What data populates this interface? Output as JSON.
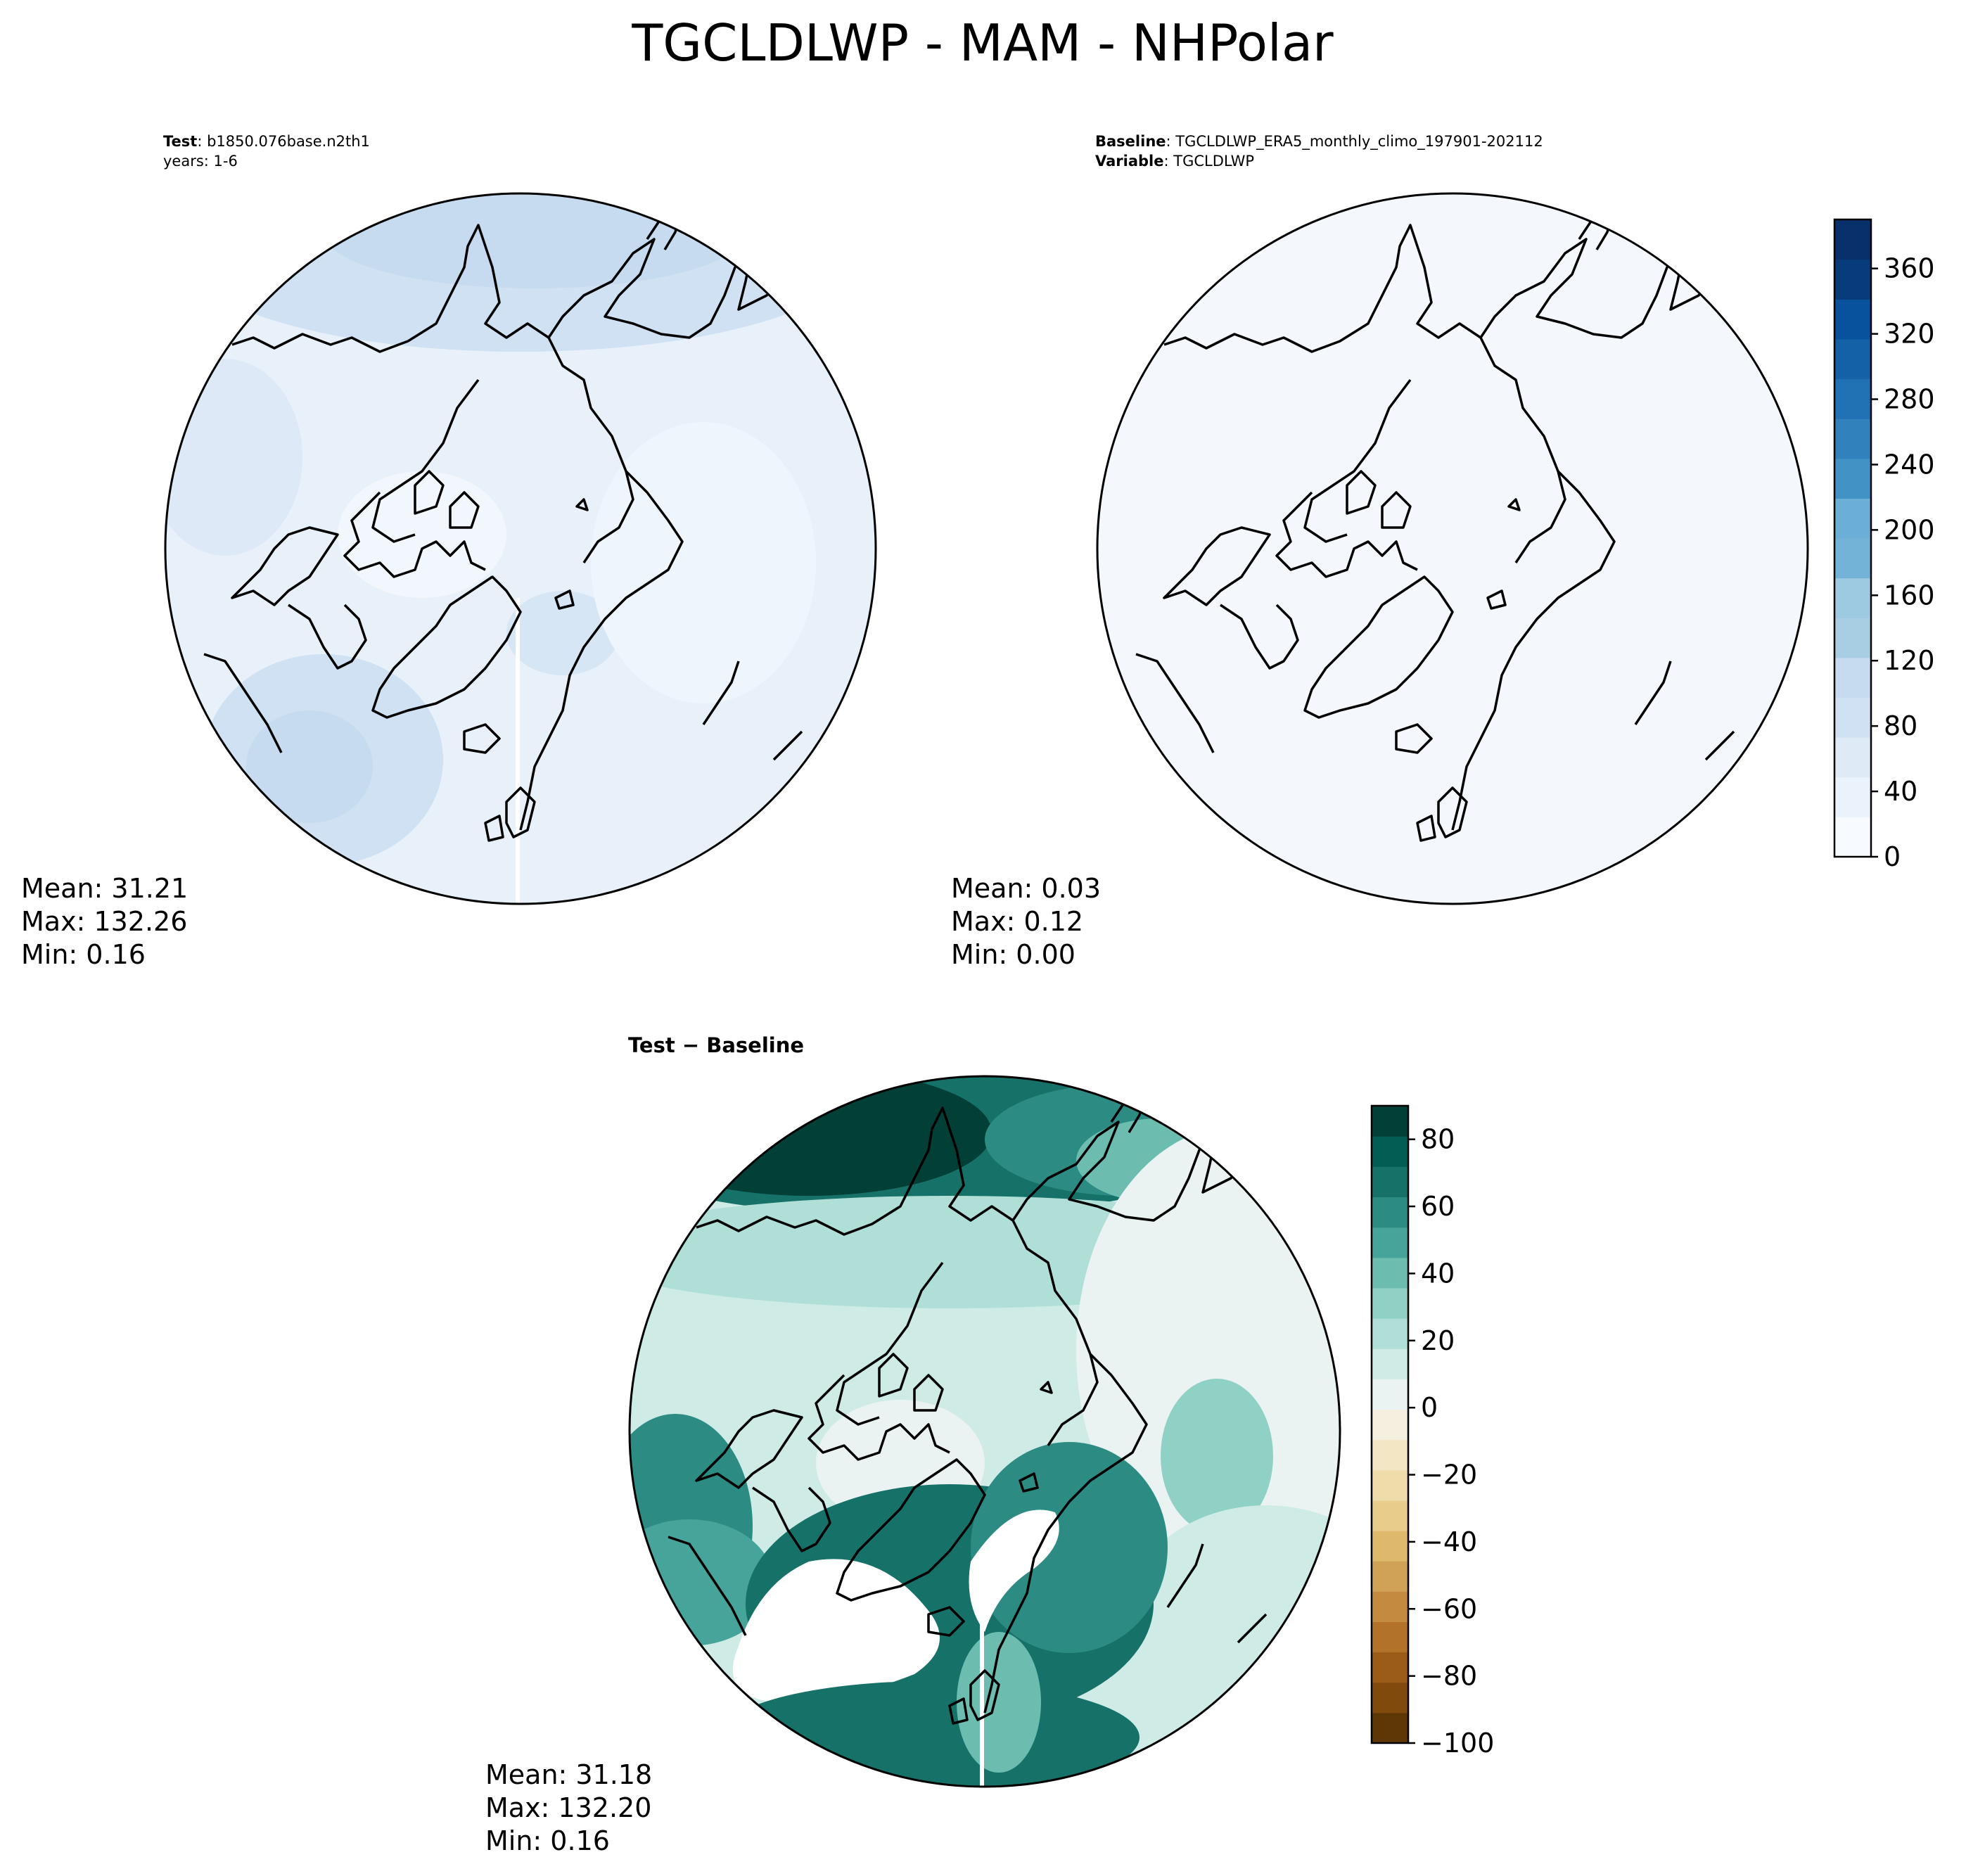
{
  "title": "TGCLDLWP - MAM - NHPolar",
  "panels": [
    {
      "key": "test",
      "header_lines": [
        {
          "bold": "Test",
          "text": ": b1850.076base.n2th1"
        },
        {
          "bold": "",
          "text": "years: 1-6"
        }
      ],
      "stats": [
        "Mean: 31.21",
        "Max: 132.26",
        "Min:  0.16"
      ]
    },
    {
      "key": "baseline",
      "header_lines": [
        {
          "bold": "Baseline",
          "text": ": TGCLDLWP_ERA5_monthly_climo_197901-202112"
        },
        {
          "bold": "Variable",
          "text": ": TGCLDLWP"
        }
      ],
      "stats": [
        "Mean:  0.03",
        "Max:  0.12",
        "Min:  0.00"
      ]
    },
    {
      "key": "diff",
      "header_lines": [
        {
          "bold": "Test − Baseline",
          "text": ""
        }
      ],
      "stats": [
        "Mean: 31.18",
        "Max: 132.20",
        "Min:  0.16"
      ]
    }
  ],
  "chart_data": [
    {
      "type": "heatmap",
      "projection": "north-polar-stereographic",
      "title": "Test: b1850.076base.n2th1 years: 1-6",
      "stats": {
        "mean": 31.21,
        "max": 132.26,
        "min": 0.16
      },
      "colormap": "Blues",
      "colorbar": {
        "min": 0,
        "max": 390,
        "ticks": [
          0,
          40,
          80,
          120,
          160,
          200,
          240,
          280,
          320,
          360
        ]
      }
    },
    {
      "type": "heatmap",
      "projection": "north-polar-stereographic",
      "title": "Baseline: TGCLDLWP_ERA5_monthly_climo_197901-202112 Variable: TGCLDLWP",
      "stats": {
        "mean": 0.03,
        "max": 0.12,
        "min": 0.0
      },
      "colormap": "Blues",
      "colorbar": {
        "min": 0,
        "max": 390,
        "ticks": [
          0,
          40,
          80,
          120,
          160,
          200,
          240,
          280,
          320,
          360
        ]
      }
    },
    {
      "type": "heatmap",
      "projection": "north-polar-stereographic",
      "title": "Test − Baseline",
      "stats": {
        "mean": 31.18,
        "max": 132.2,
        "min": 0.16
      },
      "colormap": "BrBG",
      "colorbar": {
        "min": -100,
        "max": 90,
        "ticks": [
          -100,
          -80,
          -60,
          -40,
          -20,
          0,
          20,
          40,
          60,
          80
        ]
      }
    }
  ],
  "colors": {
    "blues": [
      "#f7fbff",
      "#eaf2fb",
      "#deebf7",
      "#cfe1f2",
      "#c6dbef",
      "#a8cee4",
      "#9ecae1",
      "#74b3d8",
      "#6baed6",
      "#4292c6",
      "#3181bd",
      "#2171b5",
      "#1461a8",
      "#08519c",
      "#083b7a",
      "#08306b"
    ],
    "brbg_neg": [
      "#f5efe0",
      "#f3e6c4",
      "#efdcab",
      "#e8cc8c",
      "#ddb86d",
      "#d0a257",
      "#c48a3f",
      "#b3722a",
      "#9a5c18",
      "#804a0d",
      "#5f3606"
    ],
    "brbg_pos": [
      "#eaf3f1",
      "#cfebe6",
      "#afdfd6",
      "#8fd1c4",
      "#6cbdb0",
      "#47a49a",
      "#2c8c84",
      "#167169",
      "#045d55",
      "#013f37"
    ]
  }
}
